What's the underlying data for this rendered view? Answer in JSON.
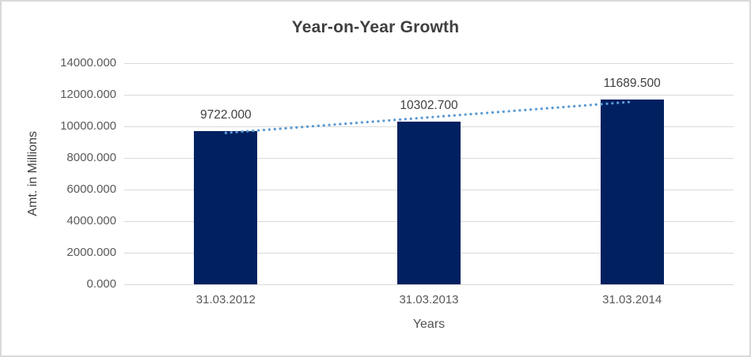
{
  "chart_data": {
    "type": "bar",
    "title": "Year-on-Year Growth",
    "xlabel": "Years",
    "ylabel": "Amt. in Millions",
    "categories": [
      "31.03.2012",
      "31.03.2013",
      "31.03.2014"
    ],
    "values": [
      9722.0,
      10302.7,
      11689.5
    ],
    "data_labels": [
      "9722.000",
      "10302.700",
      "11689.500"
    ],
    "y_ticks": [
      "0.000",
      "2000.000",
      "4000.000",
      "6000.000",
      "8000.000",
      "10000.000",
      "12000.000",
      "14000.000"
    ],
    "ylim": [
      0,
      14000
    ],
    "y_tick_step": 2000,
    "grid": true,
    "legend": "none",
    "trendline": {
      "type": "linear",
      "style": "dotted"
    },
    "colors": {
      "bar": "#002060",
      "trendline": "#5b9bd5",
      "gridline": "#d9d9d9",
      "title_text": "#3f3f3f",
      "tick_text": "#595959",
      "label_text": "#404040",
      "frame_border": "#d9d9d9"
    }
  }
}
